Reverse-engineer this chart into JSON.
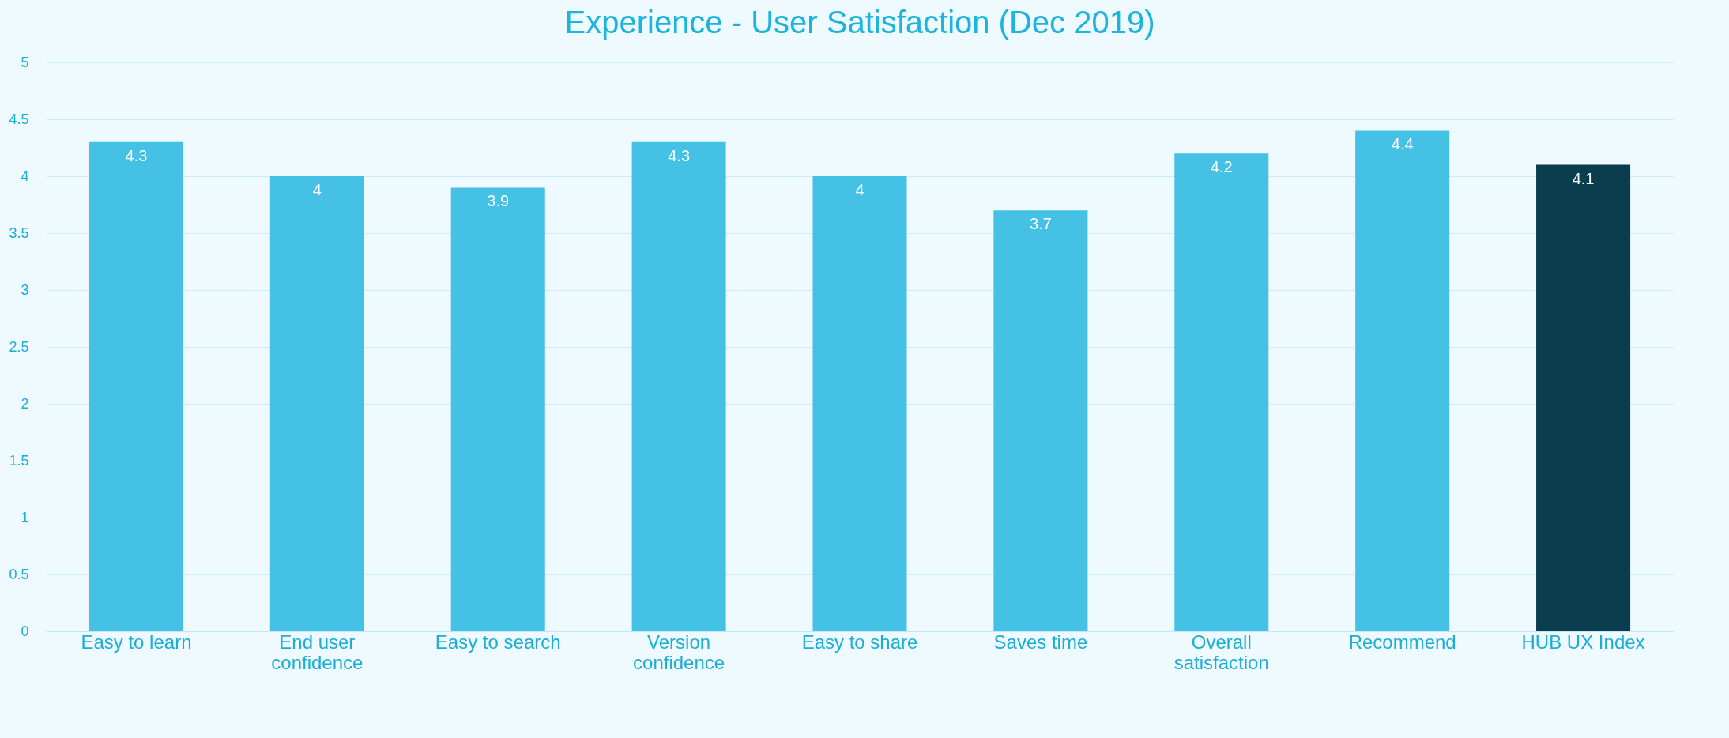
{
  "chart_data": {
    "type": "bar",
    "title": "Experience - User Satisfaction (Dec 2019)",
    "categories": [
      "Easy to learn",
      "End user confidence",
      "Easy to search",
      "Version confidence",
      "Easy to share",
      "Saves time",
      "Overall satisfaction",
      "Recommend",
      "HUB UX Index"
    ],
    "values": [
      4.3,
      4,
      3.9,
      4.3,
      4,
      3.7,
      4.2,
      4.4,
      4.1
    ],
    "colors": [
      "#45c1e6",
      "#45c1e6",
      "#45c1e6",
      "#45c1e6",
      "#45c1e6",
      "#45c1e6",
      "#45c1e6",
      "#45c1e6",
      "#0a3d4d"
    ],
    "ylim": [
      0,
      5
    ],
    "yticks": [
      0,
      0.5,
      1,
      1.5,
      2,
      2.5,
      3,
      3.5,
      4,
      4.5,
      5
    ],
    "grid": "y",
    "data_labels": true
  }
}
